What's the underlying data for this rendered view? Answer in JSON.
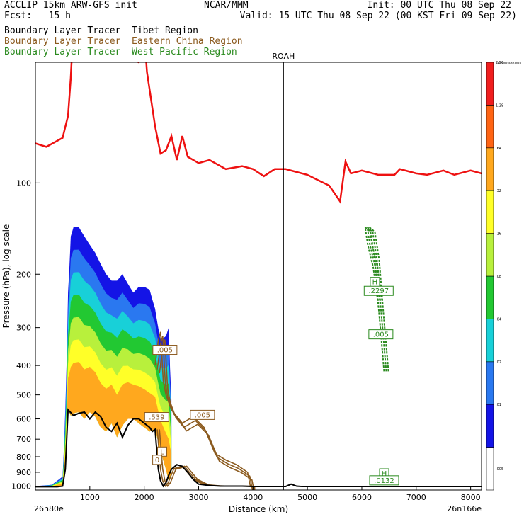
{
  "header": {
    "left1": "ACCLIP 15km ARW-GFS init",
    "left2": "Fcst:   15 h",
    "center": "NCAR/MMM",
    "right1": "Init: 00 UTC Thu 08 Sep 22",
    "right2": "Valid: 15 UTC Thu 08 Sep 22 (00 KST Fri 09 Sep 22)"
  },
  "legend": [
    {
      "text": "Boundary Layer Tracer  Tibet Region",
      "color": "#000000"
    },
    {
      "text": "Boundary Layer Tracer  Eastern China Region",
      "color": "#8b5a1e"
    },
    {
      "text": "Boundary Layer Tracer  West Pacific Region",
      "color": "#2a8a1e"
    }
  ],
  "chart_data": {
    "type": "heatmap",
    "xlabel": "Distance (km)",
    "ylabel": "Pressure (hPa), log scale",
    "x_ticks": [
      "1000",
      "2000",
      "3000",
      "4000",
      "5000",
      "6000",
      "7000",
      "8000"
    ],
    "y_ticks": [
      "100",
      "200",
      "300",
      "400",
      "500",
      "600",
      "700",
      "800",
      "900",
      "1000"
    ],
    "xlim": [
      0,
      8200
    ],
    "ylim": [
      1030,
      40
    ],
    "y_scale": "log",
    "left_end_label": "26n80e",
    "right_end_label": "26n166e",
    "vertical_marker": {
      "x": 4560,
      "label": "ROAH"
    },
    "colorbar": {
      "title": "Dimensionless",
      "labels": [
        ".005",
        ".01",
        ".02",
        ".04",
        ".08",
        ".16",
        ".32",
        ".64",
        "1.28",
        "2.56"
      ],
      "colors": [
        "#ffffff",
        "#1414e6",
        "#2a78f0",
        "#18d0d8",
        "#22c832",
        "#b8f03c",
        "#ffff28",
        "#ffa81e",
        "#ff6414",
        "#f01e1e"
      ]
    },
    "contour_labels": [
      {
        "text": ".005",
        "x": 2380,
        "p": 360,
        "color": "#8b5a1e"
      },
      {
        "text": ".005",
        "x": 3070,
        "p": 590,
        "color": "#8b5a1e"
      },
      {
        "text": ".539",
        "x": 2230,
        "p": 600,
        "color": "#8b5a1e"
      },
      {
        "text": "L",
        "x": 2330,
        "p": 780,
        "color": "#8b5a1e"
      },
      {
        "text": "0",
        "x": 2240,
        "p": 830,
        "color": "#8b5a1e"
      },
      {
        "text": "H",
        "x": 6240,
        "p": 215,
        "color": "#2a8a1e"
      },
      {
        "text": ".2297",
        "x": 6310,
        "p": 230,
        "color": "#2a8a1e"
      },
      {
        "text": ".005",
        "x": 6350,
        "p": 320,
        "color": "#2a8a1e"
      },
      {
        "text": "H",
        "x": 6410,
        "p": 920,
        "color": "#2a8a1e"
      },
      {
        "text": ".0132",
        "x": 6410,
        "p": 970,
        "color": "#2a8a1e"
      }
    ],
    "tropopause": {
      "color": "#ee1111",
      "x": [
        0,
        200,
        500,
        600,
        650,
        700,
        900,
        1100,
        1400,
        1500,
        1600,
        1900,
        2000,
        2050,
        2200,
        2300,
        2400,
        2500,
        2600,
        2700,
        2800,
        3000,
        3200,
        3500,
        3800,
        4000,
        4200,
        4400,
        4600,
        4800,
        5000,
        5200,
        5400,
        5600,
        5700,
        5800,
        6000,
        6300,
        6600,
        6700,
        7000,
        7200,
        7500,
        7700,
        8000,
        8200
      ],
      "p": [
        74,
        76,
        71,
        60,
        45,
        30,
        30,
        35,
        35,
        28,
        38,
        40,
        32,
        43,
        65,
        80,
        78,
        70,
        84,
        70,
        82,
        86,
        84,
        90,
        88,
        90,
        95,
        90,
        90,
        92,
        94,
        98,
        102,
        115,
        85,
        93,
        91,
        94,
        94,
        90,
        93,
        94,
        91,
        94,
        91,
        93
      ]
    },
    "terrain": {
      "color": "#000000",
      "x": [
        0,
        100,
        200,
        300,
        400,
        500,
        550,
        600,
        700,
        800,
        900,
        1000,
        1100,
        1200,
        1300,
        1400,
        1500,
        1600,
        1700,
        1800,
        1900,
        2000,
        2100,
        2150,
        2200,
        2230,
        2260,
        2300,
        2350,
        2400,
        2450,
        2500,
        2600,
        2700,
        2800,
        2900,
        3000,
        3200,
        3400,
        3600,
        3800,
        4000,
        4200,
        4400,
        4600,
        4700,
        4800,
        4900,
        5000,
        6000,
        7000,
        8000,
        8200
      ],
      "p": [
        1005,
        1005,
        1005,
        1005,
        1005,
        1000,
        880,
        560,
        585,
        575,
        570,
        600,
        570,
        590,
        640,
        660,
        620,
        690,
        630,
        600,
        600,
        620,
        640,
        660,
        650,
        760,
        880,
        960,
        1000,
        975,
        920,
        880,
        850,
        860,
        900,
        950,
        985,
        995,
        1000,
        1000,
        1000,
        1003,
        1003,
        1003,
        1003,
        985,
        1000,
        1003,
        1003,
        1003,
        1003,
        1003,
        1003
      ]
    },
    "tibet_tracer_profile": {
      "note_x_unit": "km",
      "x": [
        0,
        300,
        500,
        560,
        600,
        650,
        700,
        800,
        900,
        1000,
        1100,
        1200,
        1300,
        1400,
        1500,
        1600,
        1700,
        1800,
        1900,
        2000,
        2100,
        2200,
        2300,
        2400,
        2450,
        2500
      ],
      "top_p": [
        1000,
        990,
        930,
        480,
        230,
        150,
        140,
        140,
        150,
        160,
        170,
        185,
        200,
        210,
        210,
        200,
        215,
        230,
        220,
        220,
        225,
        260,
        330,
        320,
        300,
        520
      ],
      "bottom_p": [
        1005,
        1005,
        1000,
        880,
        560,
        585,
        575,
        570,
        600,
        570,
        590,
        640,
        660,
        620,
        690,
        630,
        600,
        600,
        620,
        640,
        660,
        650,
        760,
        880,
        960,
        900
      ]
    }
  }
}
